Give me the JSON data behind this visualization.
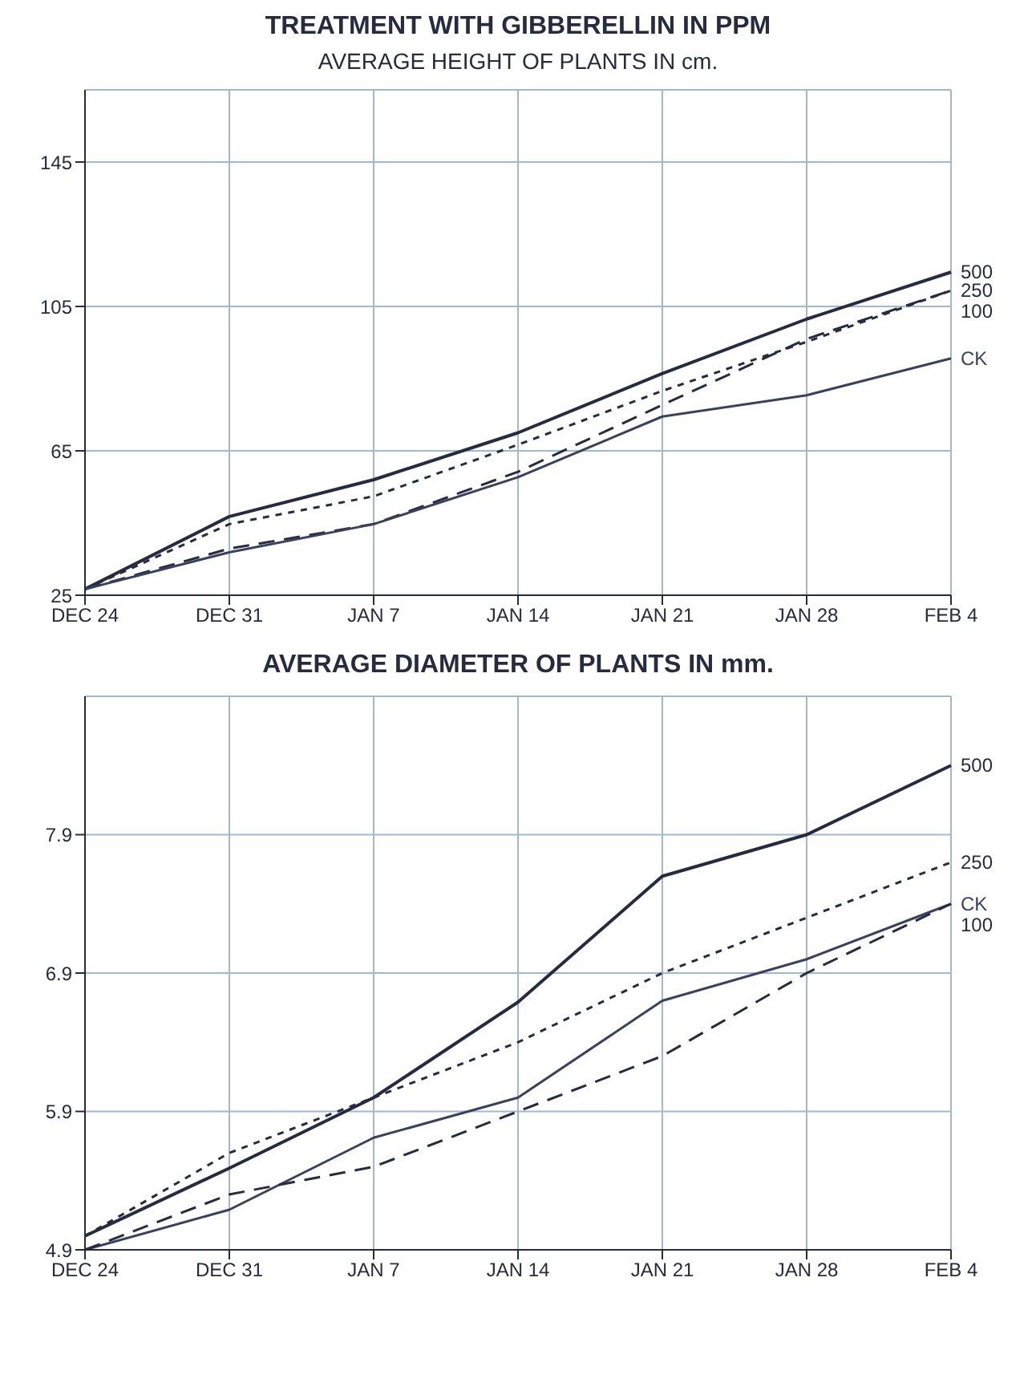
{
  "chart_data": [
    {
      "type": "line",
      "title": "TREATMENT WITH GIBBERELLIN IN PPM",
      "subtitle": "AVERAGE HEIGHT OF PLANTS IN cm.",
      "categories": [
        "DEC 24",
        "DEC 31",
        "JAN 7",
        "JAN 14",
        "JAN 21",
        "JAN 28",
        "FEB 4"
      ],
      "ylim": [
        25,
        165
      ],
      "yticks": [
        25,
        65,
        105,
        145
      ],
      "grid": true,
      "legend": false,
      "marker": "none",
      "series": [
        {
          "name": "500",
          "color": "#262b40",
          "line_style": "solid",
          "values": [
            26.7,
            46.8,
            57,
            70,
            86.4,
            101.5,
            114.5
          ]
        },
        {
          "name": "250",
          "color": "#262b40",
          "line_style": "dotted",
          "values": [
            26.7,
            44.7,
            52.4,
            66.7,
            81.6,
            95.2,
            109.4
          ]
        },
        {
          "name": "100",
          "color": "#262b40",
          "line_style": "dashed",
          "values": [
            26.7,
            37.9,
            44.7,
            59.2,
            77.7,
            96,
            109.4
          ]
        },
        {
          "name": "CK",
          "color": "#3a4060",
          "line_style": "solid",
          "values": [
            26.7,
            36.9,
            44.7,
            57.7,
            74.5,
            80.4,
            90.6
          ]
        }
      ]
    },
    {
      "type": "line",
      "title": "AVERAGE DIAMETER OF PLANTS IN mm.",
      "categories": [
        "DEC 24",
        "DEC 31",
        "JAN 7",
        "JAN 14",
        "JAN 21",
        "JAN 28",
        "FEB 4"
      ],
      "ylim": [
        4.9,
        8.9
      ],
      "yticks": [
        4.9,
        5.9,
        6.9,
        7.9
      ],
      "grid": true,
      "legend": false,
      "marker": "none",
      "series": [
        {
          "name": "500",
          "color": "#262b40",
          "line_style": "solid",
          "values": [
            5.0,
            5.49,
            6.0,
            6.69,
            7.6,
            7.9,
            8.4
          ]
        },
        {
          "name": "250",
          "color": "#262b40",
          "line_style": "dotted",
          "values": [
            5.0,
            5.6,
            6.0,
            6.4,
            6.9,
            7.3,
            7.7
          ]
        },
        {
          "name": "CK",
          "color": "#3a4060",
          "line_style": "solid",
          "values": [
            4.9,
            5.19,
            5.71,
            6.0,
            6.7,
            7.0,
            7.4
          ]
        },
        {
          "name": "100",
          "color": "#262b40",
          "line_style": "dashed",
          "values": [
            4.9,
            5.3,
            5.5,
            5.9,
            6.3,
            6.9,
            7.4
          ]
        }
      ]
    }
  ]
}
